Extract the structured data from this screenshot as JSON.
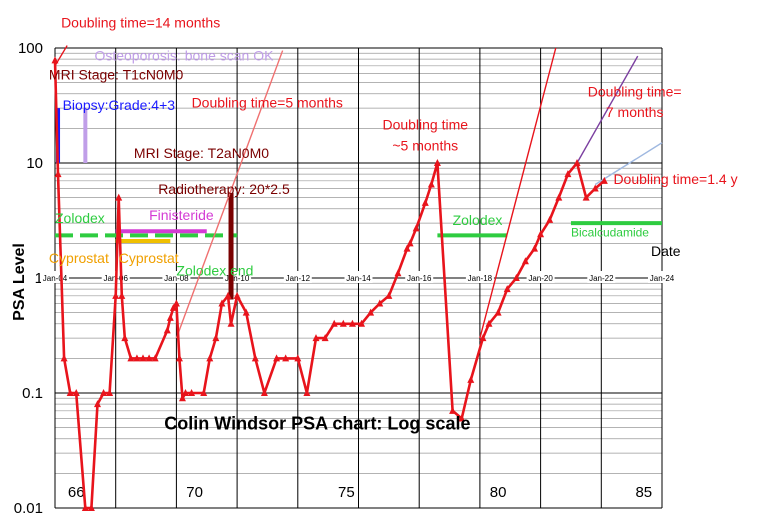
{
  "chart_data": {
    "type": "line",
    "title": "Colin Windsor PSA chart: Log scale",
    "xlabel": "Date",
    "ylabel": "PSA Level",
    "yscale": "log",
    "ylim": [
      0.01,
      100
    ],
    "xlim": [
      2004,
      2024
    ],
    "grid": true,
    "y_ticks": [
      "0.01",
      "0.1",
      "1",
      "10",
      "100"
    ],
    "x_ticks": [
      {
        "year": 2004,
        "label": "Jan-04"
      },
      {
        "year": 2006,
        "label": "Jan-06"
      },
      {
        "year": 2008,
        "label": "Jan-08"
      },
      {
        "year": 2010,
        "label": "Jan-10"
      },
      {
        "year": 2012,
        "label": "Jan-12"
      },
      {
        "year": 2014,
        "label": "Jan-14"
      },
      {
        "year": 2016,
        "label": "Jan-16"
      },
      {
        "year": 2018,
        "label": "Jan-18"
      },
      {
        "year": 2020,
        "label": "Jan-20"
      },
      {
        "year": 2022,
        "label": "Jan-22"
      },
      {
        "year": 2024,
        "label": "Jan-24"
      }
    ],
    "age_labels": [
      {
        "year": 2004.7,
        "label": "66"
      },
      {
        "year": 2008.6,
        "label": "70"
      },
      {
        "year": 2013.6,
        "label": "75"
      },
      {
        "year": 2018.6,
        "label": "80"
      },
      {
        "year": 2023.4,
        "label": "85"
      }
    ],
    "series": [
      {
        "color": "#e8141c",
        "points": [
          {
            "x": 2004.0,
            "y": 78
          },
          {
            "x": 2004.1,
            "y": 8
          },
          {
            "x": 2004.3,
            "y": 0.2
          },
          {
            "x": 2004.5,
            "y": 0.1
          },
          {
            "x": 2004.7,
            "y": 0.1
          },
          {
            "x": 2005.0,
            "y": 0.01
          },
          {
            "x": 2005.2,
            "y": 0.01
          },
          {
            "x": 2005.4,
            "y": 0.08
          },
          {
            "x": 2005.6,
            "y": 0.1
          },
          {
            "x": 2005.8,
            "y": 0.1
          },
          {
            "x": 2006.0,
            "y": 0.7
          },
          {
            "x": 2006.1,
            "y": 5.0
          },
          {
            "x": 2006.2,
            "y": 0.7
          },
          {
            "x": 2006.3,
            "y": 0.3
          },
          {
            "x": 2006.5,
            "y": 0.2
          },
          {
            "x": 2006.7,
            "y": 0.2
          },
          {
            "x": 2006.9,
            "y": 0.2
          },
          {
            "x": 2007.1,
            "y": 0.2
          },
          {
            "x": 2007.3,
            "y": 0.2
          },
          {
            "x": 2007.7,
            "y": 0.35
          },
          {
            "x": 2007.8,
            "y": 0.45
          },
          {
            "x": 2007.9,
            "y": 0.55
          },
          {
            "x": 2008.0,
            "y": 0.6
          },
          {
            "x": 2008.1,
            "y": 0.2
          },
          {
            "x": 2008.2,
            "y": 0.09
          },
          {
            "x": 2008.3,
            "y": 0.1
          },
          {
            "x": 2008.5,
            "y": 0.1
          },
          {
            "x": 2008.9,
            "y": 0.1
          },
          {
            "x": 2009.1,
            "y": 0.2
          },
          {
            "x": 2009.3,
            "y": 0.3
          },
          {
            "x": 2009.5,
            "y": 0.6
          },
          {
            "x": 2009.7,
            "y": 0.7
          },
          {
            "x": 2009.8,
            "y": 0.4
          },
          {
            "x": 2010.0,
            "y": 0.7
          },
          {
            "x": 2010.3,
            "y": 0.5
          },
          {
            "x": 2010.6,
            "y": 0.2
          },
          {
            "x": 2010.9,
            "y": 0.1
          },
          {
            "x": 2011.3,
            "y": 0.2
          },
          {
            "x": 2011.6,
            "y": 0.2
          },
          {
            "x": 2012.0,
            "y": 0.2
          },
          {
            "x": 2012.3,
            "y": 0.1
          },
          {
            "x": 2012.6,
            "y": 0.3
          },
          {
            "x": 2012.9,
            "y": 0.3
          },
          {
            "x": 2013.2,
            "y": 0.4
          },
          {
            "x": 2013.5,
            "y": 0.4
          },
          {
            "x": 2013.8,
            "y": 0.4
          },
          {
            "x": 2014.1,
            "y": 0.4
          },
          {
            "x": 2014.4,
            "y": 0.5
          },
          {
            "x": 2014.7,
            "y": 0.6
          },
          {
            "x": 2015.0,
            "y": 0.7
          },
          {
            "x": 2015.3,
            "y": 1.1
          },
          {
            "x": 2015.6,
            "y": 1.8
          },
          {
            "x": 2015.7,
            "y": 2.0
          },
          {
            "x": 2015.9,
            "y": 2.7
          },
          {
            "x": 2016.2,
            "y": 4.5
          },
          {
            "x": 2016.4,
            "y": 6.5
          },
          {
            "x": 2016.6,
            "y": 10
          },
          {
            "x": 2017.1,
            "y": 0.07
          },
          {
            "x": 2017.4,
            "y": 0.06
          },
          {
            "x": 2017.7,
            "y": 0.13
          },
          {
            "x": 2018.1,
            "y": 0.3
          },
          {
            "x": 2018.3,
            "y": 0.4
          },
          {
            "x": 2018.6,
            "y": 0.5
          },
          {
            "x": 2018.9,
            "y": 0.8
          },
          {
            "x": 2019.2,
            "y": 1.0
          },
          {
            "x": 2019.5,
            "y": 1.4
          },
          {
            "x": 2019.8,
            "y": 1.8
          },
          {
            "x": 2020.0,
            "y": 2.4
          },
          {
            "x": 2020.3,
            "y": 3.2
          },
          {
            "x": 2020.6,
            "y": 5.0
          },
          {
            "x": 2020.9,
            "y": 8.0
          },
          {
            "x": 2021.2,
            "y": 10.0
          },
          {
            "x": 2021.5,
            "y": 5.0
          },
          {
            "x": 2021.8,
            "y": 6.0
          },
          {
            "x": 2022.1,
            "y": 7.0
          }
        ]
      }
    ],
    "trend_lines": [
      {
        "color": "#e8141c",
        "points": [
          {
            "x": 2004.0,
            "y": 70
          },
          {
            "x": 2004.4,
            "y": 105
          }
        ]
      },
      {
        "color": "#f07070",
        "points": [
          {
            "x": 2008.0,
            "y": 0.3
          },
          {
            "x": 2011.5,
            "y": 95
          }
        ]
      },
      {
        "color": "#e8141c",
        "points": [
          {
            "x": 2018.0,
            "y": 0.3
          },
          {
            "x": 2020.5,
            "y": 100
          }
        ]
      },
      {
        "color": "#7b3fa0",
        "points": [
          {
            "x": 2021.2,
            "y": 10
          },
          {
            "x": 2023.2,
            "y": 85
          }
        ]
      },
      {
        "color": "#9fb8e0",
        "points": [
          {
            "x": 2021.8,
            "y": 6.5
          },
          {
            "x": 2024.0,
            "y": 15
          }
        ]
      }
    ],
    "treatments": [
      {
        "label": "Zolodex",
        "color": "#2ecc40",
        "start": 2004.0,
        "end": 2010.0,
        "y": 2.35,
        "dashed": true,
        "label_year": 2004.0,
        "label_y": 3.0,
        "label_color": "#2ecc40"
      },
      {
        "label": "Finisteride",
        "color": "#d43bd4",
        "start": 2006.0,
        "end": 2009.0,
        "y": 2.55,
        "dashed": false,
        "label_year": 2007.1,
        "label_y": 3.2,
        "label_color": "#d43bd4"
      },
      {
        "label": "Cyprostat",
        "color": "#f0c000",
        "start": 2006.0,
        "end": 2007.8,
        "y": 2.1,
        "dashed": false,
        "label_year": 2006.1,
        "label_y": 1.35,
        "label_color": "#f0a000"
      },
      {
        "label": "Zolodex",
        "color": "#2ecc40",
        "start": 2016.6,
        "end": 2018.9,
        "y": 2.35,
        "dashed": false,
        "label_year": 2017.1,
        "label_y": 2.9,
        "label_color": "#2ecc40"
      },
      {
        "label": "Bicalcudamide",
        "color": "#2ecc40",
        "start": 2021.0,
        "end": 2024.0,
        "y": 3.0,
        "dashed": false,
        "label_year": 2021.0,
        "label_y": 2.3,
        "label_color": "#2ecc40"
      }
    ],
    "markers": [
      {
        "label": "Biopsy:Grade:4+3",
        "color": "#1a1aff",
        "year": 2004.1,
        "y_low": 10,
        "y_high": 30,
        "width": 4
      },
      {
        "label": "Osteoporosis: bone scan OK",
        "color": "#c09ee8",
        "year": 2005.0,
        "y_low": 10,
        "y_high": 30,
        "width": 4
      },
      {
        "label": "Radiotherapy: 20*2.5",
        "color": "#7a0000",
        "year": 2009.8,
        "y_low": 0.65,
        "y_high": 5.5,
        "width": 5
      }
    ],
    "annotations": [
      {
        "text": "Doubling time=14 months",
        "color": "#e8141c",
        "year": 2004.2,
        "y": 150,
        "size": 14,
        "anchor": "start"
      },
      {
        "text": "Osteoporosis: bone scan OK",
        "color": "#c09ee8",
        "year": 2005.3,
        "y": 78,
        "size": 14,
        "anchor": "start"
      },
      {
        "text": "MRI Stage: T1cN0M0",
        "color": "#7a0000",
        "year": 2003.8,
        "y": 53,
        "size": 14,
        "anchor": "start"
      },
      {
        "text": "Biopsy:Grade:4+3",
        "color": "#1a1aff",
        "year": 2004.25,
        "y": 29,
        "size": 14,
        "anchor": "start"
      },
      {
        "text": "Doubling time=5 months",
        "color": "#e8141c",
        "year": 2008.5,
        "y": 30.5,
        "size": 14,
        "anchor": "start"
      },
      {
        "text": "MRI Stage: T2aN0M0",
        "color": "#7a0000",
        "year": 2006.6,
        "y": 11.0,
        "size": 14,
        "anchor": "start"
      },
      {
        "text": "Radiotherapy: 20*2.5",
        "color": "#7a0000",
        "year": 2007.4,
        "y": 5.4,
        "size": 14,
        "anchor": "start"
      },
      {
        "text": "Doubling time",
        "color": "#e8141c",
        "year": 2016.2,
        "y": 19.5,
        "size": 14,
        "anchor": "middle"
      },
      {
        "text": "~5 months",
        "color": "#e8141c",
        "year": 2016.2,
        "y": 12.8,
        "size": 14,
        "anchor": "middle"
      },
      {
        "text": "Doubling time=",
        "color": "#e8141c",
        "year": 2023.1,
        "y": 38,
        "size": 14,
        "anchor": "middle"
      },
      {
        "text": "7 months",
        "color": "#e8141c",
        "year": 2023.1,
        "y": 25,
        "size": 14,
        "anchor": "middle"
      },
      {
        "text": "Doubling time=1.4 y",
        "color": "#e8141c",
        "year": 2022.4,
        "y": 6.6,
        "size": 14,
        "anchor": "start"
      },
      {
        "text": "Zolodex end",
        "color": "#2ecc40",
        "year": 2008.0,
        "y": 1.05,
        "size": 14,
        "anchor": "start"
      },
      {
        "text": "Cyprostat",
        "color": "#f0a000",
        "year": 2003.8,
        "y": 1.35,
        "size": 14,
        "anchor": "start"
      }
    ],
    "date_label": {
      "year": 2024.0,
      "y": 1.55
    },
    "title_position": {
      "year": 2007.6,
      "y": 0.048
    }
  }
}
